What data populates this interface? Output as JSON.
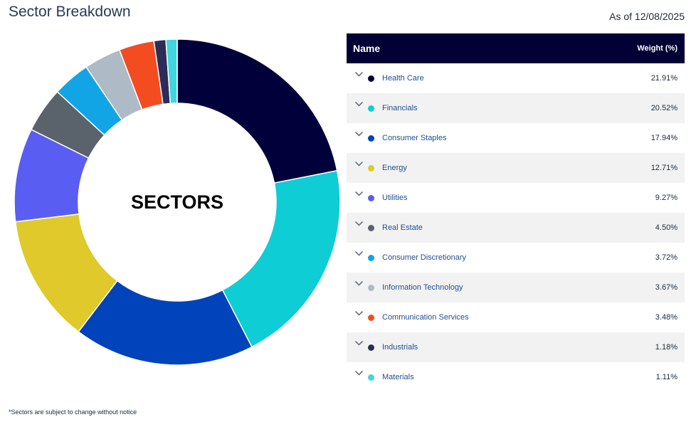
{
  "header": {
    "title": "Sector Breakdown",
    "as_of": "As of 12/08/2025"
  },
  "table": {
    "col_name": "Name",
    "col_weight": "Weight (%)"
  },
  "chart_data": {
    "type": "pie",
    "title": "SECTORS",
    "center_label": "SECTORS",
    "unit": "%",
    "categories": [
      "Health Care",
      "Financials",
      "Consumer Staples",
      "Energy",
      "Utilities",
      "Real Estate",
      "Consumer Discretionary",
      "Information Technology",
      "Communication Services",
      "Industrials",
      "Materials"
    ],
    "values": [
      21.91,
      20.52,
      17.94,
      12.71,
      9.27,
      4.5,
      3.72,
      3.67,
      3.48,
      1.18,
      1.11
    ],
    "labels": [
      "21.91%",
      "20.52%",
      "17.94%",
      "12.71%",
      "9.27%",
      "4.50%",
      "3.72%",
      "3.67%",
      "3.48%",
      "1.18%",
      "1.11%"
    ],
    "colors": [
      "#02003a",
      "#0ecdd4",
      "#0043bb",
      "#e0c92b",
      "#5a5df2",
      "#5a636c",
      "#12a5e6",
      "#aebac6",
      "#f44c21",
      "#2b2d58",
      "#3fd6de"
    ]
  },
  "footnote": "*Sectors are subject to change without notice"
}
